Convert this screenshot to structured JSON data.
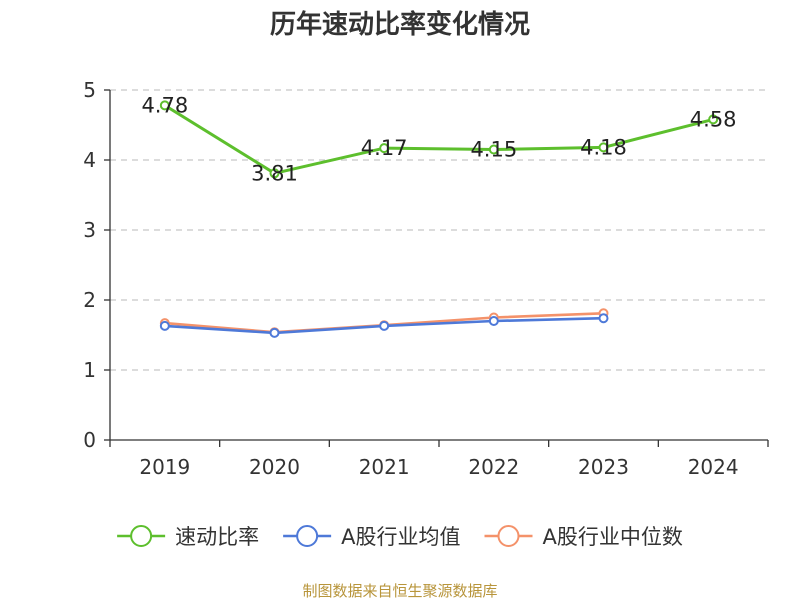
{
  "chart_data": {
    "type": "line",
    "title": "历年速动比率变化情况",
    "categories": [
      "2019",
      "2020",
      "2021",
      "2022",
      "2023",
      "2024"
    ],
    "ylim": [
      0,
      5
    ],
    "yticks": [
      "0",
      "1",
      "2",
      "3",
      "4",
      "5"
    ],
    "grid": true,
    "legend_position": "bottom",
    "series": [
      {
        "name": "速动比率",
        "color": "#5dbf2d",
        "values": [
          4.78,
          3.81,
          4.17,
          4.15,
          4.18,
          4.58
        ],
        "labels": [
          "4.78",
          "3.81",
          "4.17",
          "4.15",
          "4.18",
          "4.58"
        ]
      },
      {
        "name": "A股行业均值",
        "color": "#4e79d8",
        "values": [
          1.63,
          1.53,
          1.63,
          1.7,
          1.74,
          null
        ]
      },
      {
        "name": "A股行业中位数",
        "color": "#f4926a",
        "values": [
          1.67,
          1.54,
          1.64,
          1.75,
          1.81,
          null
        ]
      }
    ]
  },
  "source": "制图数据来自恒生聚源数据库"
}
